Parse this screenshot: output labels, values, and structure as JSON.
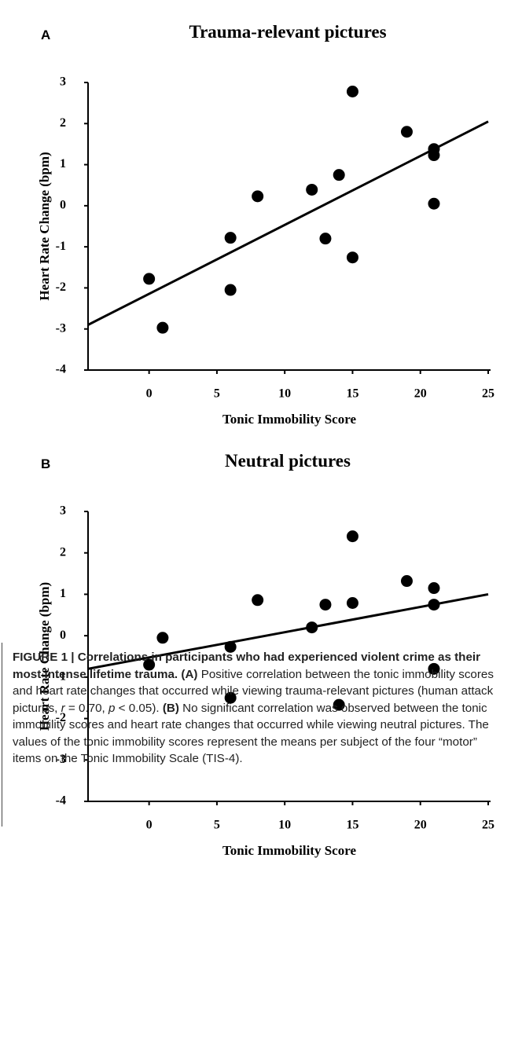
{
  "chart_data": [
    {
      "type": "scatter",
      "panel": "A",
      "title": "Trauma-relevant pictures",
      "xlabel": "Tonic Immobility Score",
      "ylabel": "Heart Rate Change (bpm)",
      "x": [
        0,
        1,
        6,
        6,
        8,
        12,
        13,
        14,
        15,
        15,
        19,
        21,
        21,
        21
      ],
      "values": [
        -1.78,
        -2.97,
        -0.78,
        -2.05,
        0.23,
        0.39,
        -0.8,
        0.75,
        2.78,
        -1.26,
        1.8,
        1.38,
        1.23,
        0.05
      ],
      "color": "#000000",
      "trend": {
        "x": [
          -4.5,
          25
        ],
        "y": [
          -2.9,
          2.05
        ]
      },
      "xlim": [
        -4.5,
        25
      ],
      "ylim": [
        -4,
        3
      ],
      "xticks": [
        0,
        5,
        10,
        15,
        20,
        25
      ],
      "yticks": [
        -4,
        -3,
        -2,
        -1,
        0,
        1,
        2,
        3
      ]
    },
    {
      "type": "scatter",
      "panel": "B",
      "title": "Neutral pictures",
      "xlabel": "Tonic Immobility Score",
      "ylabel": "Heart Rate Change (bpm)",
      "x": [
        0,
        1,
        6,
        6,
        8,
        12,
        13,
        14,
        15,
        15,
        19,
        21,
        21,
        21
      ],
      "values": [
        -0.7,
        -0.05,
        -0.27,
        -1.5,
        0.86,
        0.2,
        0.75,
        -1.67,
        2.4,
        0.79,
        1.32,
        1.15,
        0.75,
        -0.8
      ],
      "color": "#000000",
      "trend": {
        "x": [
          -4.5,
          25
        ],
        "y": [
          -0.8,
          1.0
        ]
      },
      "xlim": [
        -4.5,
        25
      ],
      "ylim": [
        -4,
        3
      ],
      "xticks": [
        0,
        5,
        10,
        15,
        20,
        25
      ],
      "yticks": [
        -4,
        -3,
        -2,
        -1,
        0,
        1,
        2,
        3
      ]
    }
  ],
  "caption": [
    "FIGURE 1 | Correlations in participants who had experienced violent crime as their most intense lifetime trauma.",
    " ",
    "(A)",
    " Positive correlation between the tonic immobility scores and heart rate changes that occurred while viewing trauma-relevant pictures (human attack pictures, ",
    "r",
    " = 0.70, ",
    "p",
    " < 0.05). ",
    "(B)",
    " No significant correlation was observed between the tonic immobility scores and heart rate changes that occurred while viewing neutral pictures. The values of the tonic immobility scores represent the means per subject of the four “motor” items on the Tonic Immobility Scale (TIS-4)."
  ]
}
